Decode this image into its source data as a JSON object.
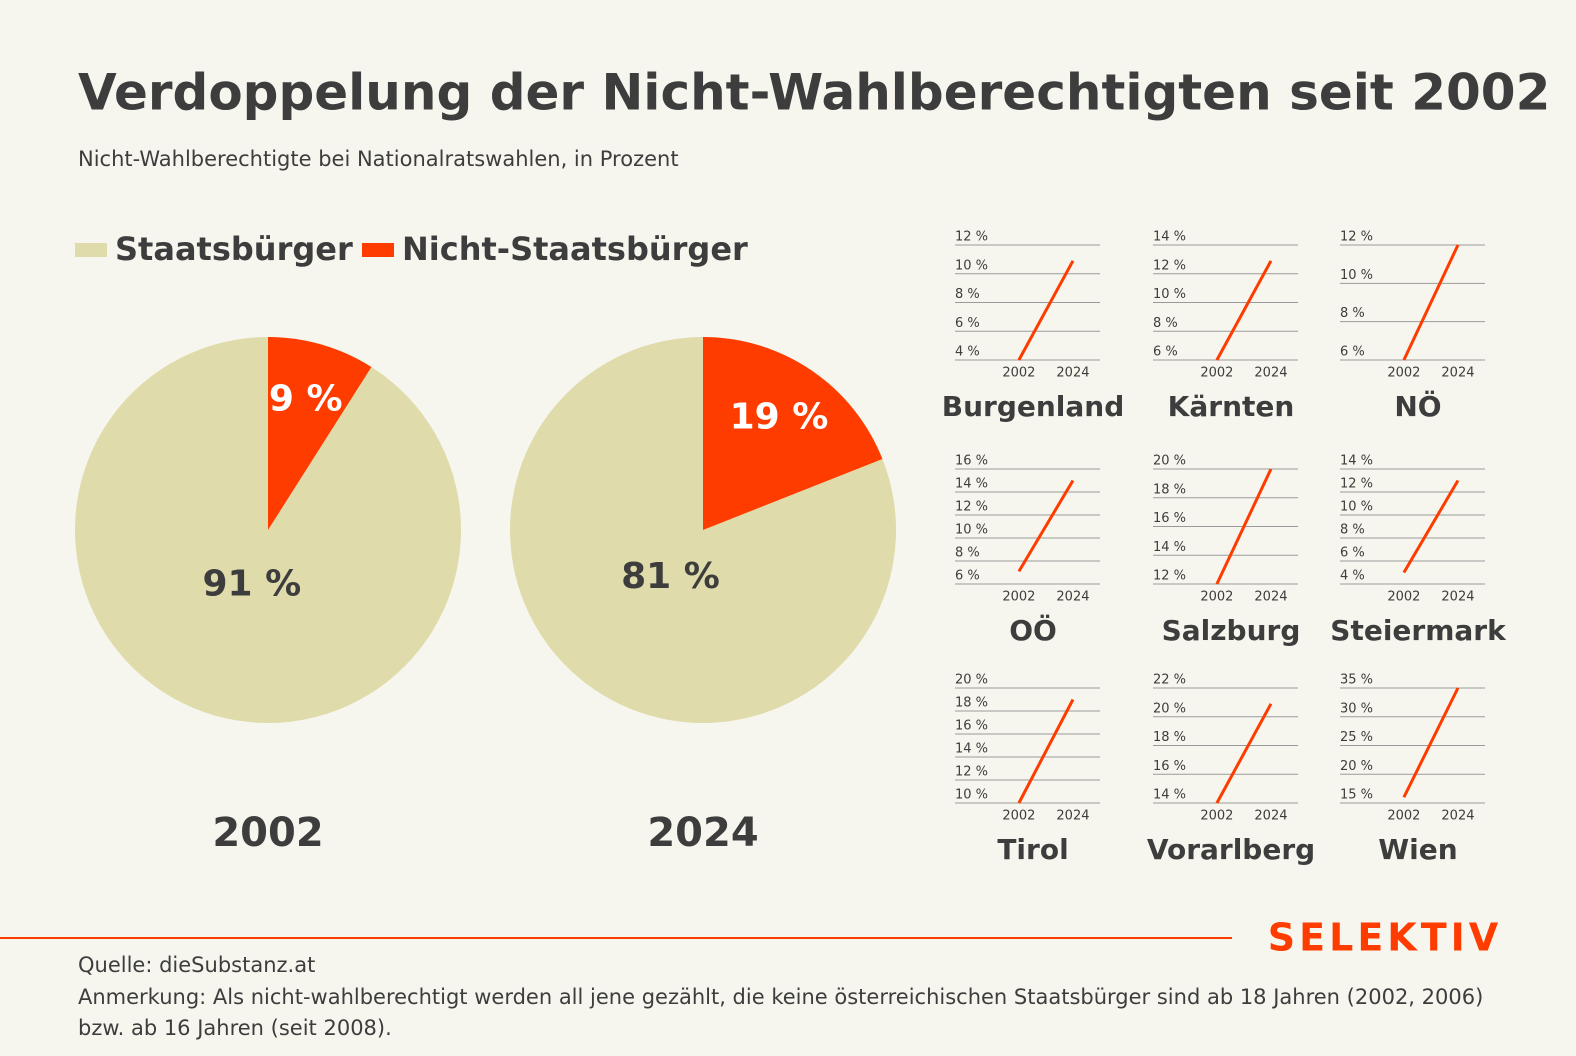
{
  "title": "Verdoppelung der Nicht-Wahlberechtigten seit 2002",
  "subtitle": "Nicht-Wahlberechtigte bei Nationalratswahlen, in Prozent",
  "source": "Quelle: dieSubstanz.at",
  "note": "Anmerkung: Als nicht-wahlberechtigt werden all jene gezählt, die keine österreichischen Staatsbürger sind ab 18 Jahren (2002, 2006) bzw. ab 16 Jahren (seit 2008).",
  "brand": "SELEKTIV",
  "chart_data": [
    {
      "type": "pie",
      "title": "2002",
      "categories": [
        "Staatsbürger",
        "Nicht-Staatsbürger"
      ],
      "values": [
        91,
        9
      ],
      "value_labels": [
        "91 %",
        "9 %"
      ],
      "colors": [
        "#dfdbaa",
        "#ff3c00"
      ]
    },
    {
      "type": "pie",
      "title": "2024",
      "categories": [
        "Staatsbürger",
        "Nicht-Staatsbürger"
      ],
      "values": [
        81,
        19
      ],
      "value_labels": [
        "81 %",
        "19 %"
      ],
      "colors": [
        "#dfdbaa",
        "#ff3c00"
      ]
    },
    {
      "type": "line",
      "title": "Burgenland",
      "x": [
        2002,
        2024
      ],
      "values": [
        4,
        10.9
      ],
      "color": "#ff3c00",
      "xlim": [
        1976,
        2035
      ],
      "xticks": [
        2002,
        2024
      ],
      "ylim": [
        4,
        12
      ],
      "yticks": [
        {
          "value": 4,
          "label": "4 %"
        },
        {
          "value": 6,
          "label": "6 %"
        },
        {
          "value": 8,
          "label": "8 %"
        },
        {
          "value": 10,
          "label": "10 %"
        },
        {
          "value": 12,
          "label": "12 %"
        }
      ]
    },
    {
      "type": "line",
      "title": "Kärnten",
      "x": [
        2002,
        2024
      ],
      "values": [
        6,
        12.9
      ],
      "color": "#ff3c00",
      "xlim": [
        1976,
        2035
      ],
      "xticks": [
        2002,
        2024
      ],
      "ylim": [
        6,
        14
      ],
      "yticks": [
        {
          "value": 6,
          "label": "6 %"
        },
        {
          "value": 8,
          "label": "8 %"
        },
        {
          "value": 10,
          "label": "10 %"
        },
        {
          "value": 12,
          "label": "12 %"
        },
        {
          "value": 14,
          "label": "14 %"
        }
      ]
    },
    {
      "type": "line",
      "title": "NÖ",
      "x": [
        2002,
        2024
      ],
      "values": [
        6,
        12
      ],
      "color": "#ff3c00",
      "xlim": [
        1976,
        2035
      ],
      "xticks": [
        2002,
        2024
      ],
      "ylim": [
        6,
        12
      ],
      "yticks": [
        {
          "value": 6,
          "label": "6 %"
        },
        {
          "value": 8,
          "label": "8 %"
        },
        {
          "value": 10,
          "label": "10 %"
        },
        {
          "value": 12,
          "label": "12 %"
        }
      ]
    },
    {
      "type": "line",
      "title": "OÖ",
      "x": [
        2002,
        2024
      ],
      "values": [
        7.1,
        15
      ],
      "color": "#ff3c00",
      "xlim": [
        1976,
        2035
      ],
      "xticks": [
        2002,
        2024
      ],
      "ylim": [
        6,
        16
      ],
      "yticks": [
        {
          "value": 6,
          "label": "6 %"
        },
        {
          "value": 8,
          "label": "8 %"
        },
        {
          "value": 10,
          "label": "10 %"
        },
        {
          "value": 12,
          "label": "12 %"
        },
        {
          "value": 14,
          "label": "14 %"
        },
        {
          "value": 16,
          "label": "16 %"
        }
      ]
    },
    {
      "type": "line",
      "title": "Salzburg",
      "x": [
        2002,
        2024
      ],
      "values": [
        12,
        20
      ],
      "color": "#ff3c00",
      "xlim": [
        1976,
        2035
      ],
      "xticks": [
        2002,
        2024
      ],
      "ylim": [
        12,
        20
      ],
      "yticks": [
        {
          "value": 12,
          "label": "12 %"
        },
        {
          "value": 14,
          "label": "14 %"
        },
        {
          "value": 16,
          "label": "16 %"
        },
        {
          "value": 18,
          "label": "18 %"
        },
        {
          "value": 20,
          "label": "20 %"
        }
      ]
    },
    {
      "type": "line",
      "title": "Steiermark",
      "x": [
        2002,
        2024
      ],
      "values": [
        5,
        13
      ],
      "color": "#ff3c00",
      "xlim": [
        1976,
        2035
      ],
      "xticks": [
        2002,
        2024
      ],
      "ylim": [
        4,
        14
      ],
      "yticks": [
        {
          "value": 4,
          "label": "4 %"
        },
        {
          "value": 6,
          "label": "6 %"
        },
        {
          "value": 8,
          "label": "8 %"
        },
        {
          "value": 10,
          "label": "10 %"
        },
        {
          "value": 12,
          "label": "12 %"
        },
        {
          "value": 14,
          "label": "14 %"
        }
      ]
    },
    {
      "type": "line",
      "title": "Tirol",
      "x": [
        2002,
        2024
      ],
      "values": [
        10,
        19
      ],
      "color": "#ff3c00",
      "xlim": [
        1976,
        2035
      ],
      "xticks": [
        2002,
        2024
      ],
      "ylim": [
        10,
        20
      ],
      "yticks": [
        {
          "value": 10,
          "label": "10 %"
        },
        {
          "value": 12,
          "label": "12 %"
        },
        {
          "value": 14,
          "label": "14 %"
        },
        {
          "value": 16,
          "label": "16 %"
        },
        {
          "value": 18,
          "label": "18 %"
        },
        {
          "value": 20,
          "label": "20 %"
        }
      ]
    },
    {
      "type": "line",
      "title": "Vorarlberg",
      "x": [
        2002,
        2024
      ],
      "values": [
        14,
        20.9
      ],
      "color": "#ff3c00",
      "xlim": [
        1976,
        2035
      ],
      "xticks": [
        2002,
        2024
      ],
      "ylim": [
        14,
        22
      ],
      "yticks": [
        {
          "value": 14,
          "label": "14 %"
        },
        {
          "value": 16,
          "label": "16 %"
        },
        {
          "value": 18,
          "label": "18 %"
        },
        {
          "value": 20,
          "label": "20 %"
        },
        {
          "value": 22,
          "label": "22 %"
        }
      ]
    },
    {
      "type": "line",
      "title": "Wien",
      "x": [
        2002,
        2024
      ],
      "values": [
        16,
        35
      ],
      "color": "#ff3c00",
      "xlim": [
        1976,
        2035
      ],
      "xticks": [
        2002,
        2024
      ],
      "ylim": [
        15,
        35
      ],
      "yticks": [
        {
          "value": 15,
          "label": "15 %"
        },
        {
          "value": 20,
          "label": "20 %"
        },
        {
          "value": 25,
          "label": "25 %"
        },
        {
          "value": 30,
          "label": "30 %"
        },
        {
          "value": 35,
          "label": "35 %"
        }
      ]
    }
  ]
}
